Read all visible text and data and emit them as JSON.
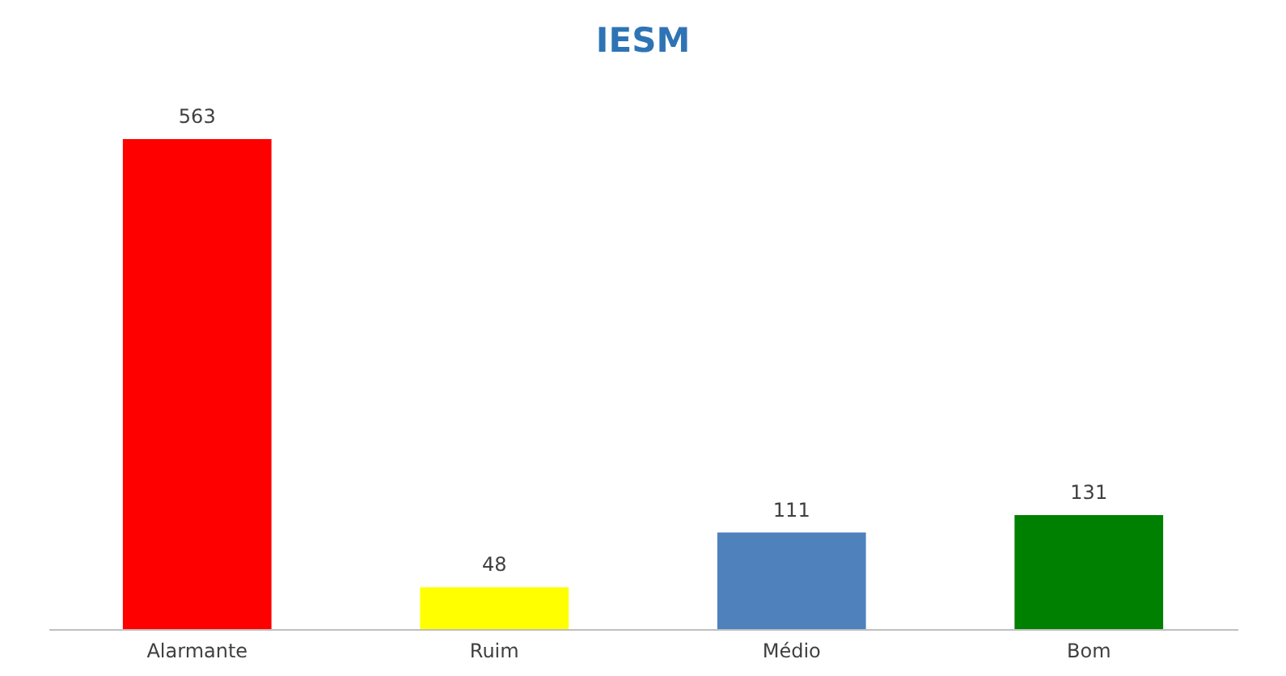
{
  "chart_data": {
    "type": "bar",
    "title": "IESM",
    "categories": [
      "Alarmante",
      "Ruim",
      "Médio",
      "Bom"
    ],
    "values": [
      563,
      48,
      111,
      131
    ],
    "colors": [
      "#ff0000",
      "#ffff00",
      "#4f81bd",
      "#008000"
    ],
    "data_labels": true
  }
}
